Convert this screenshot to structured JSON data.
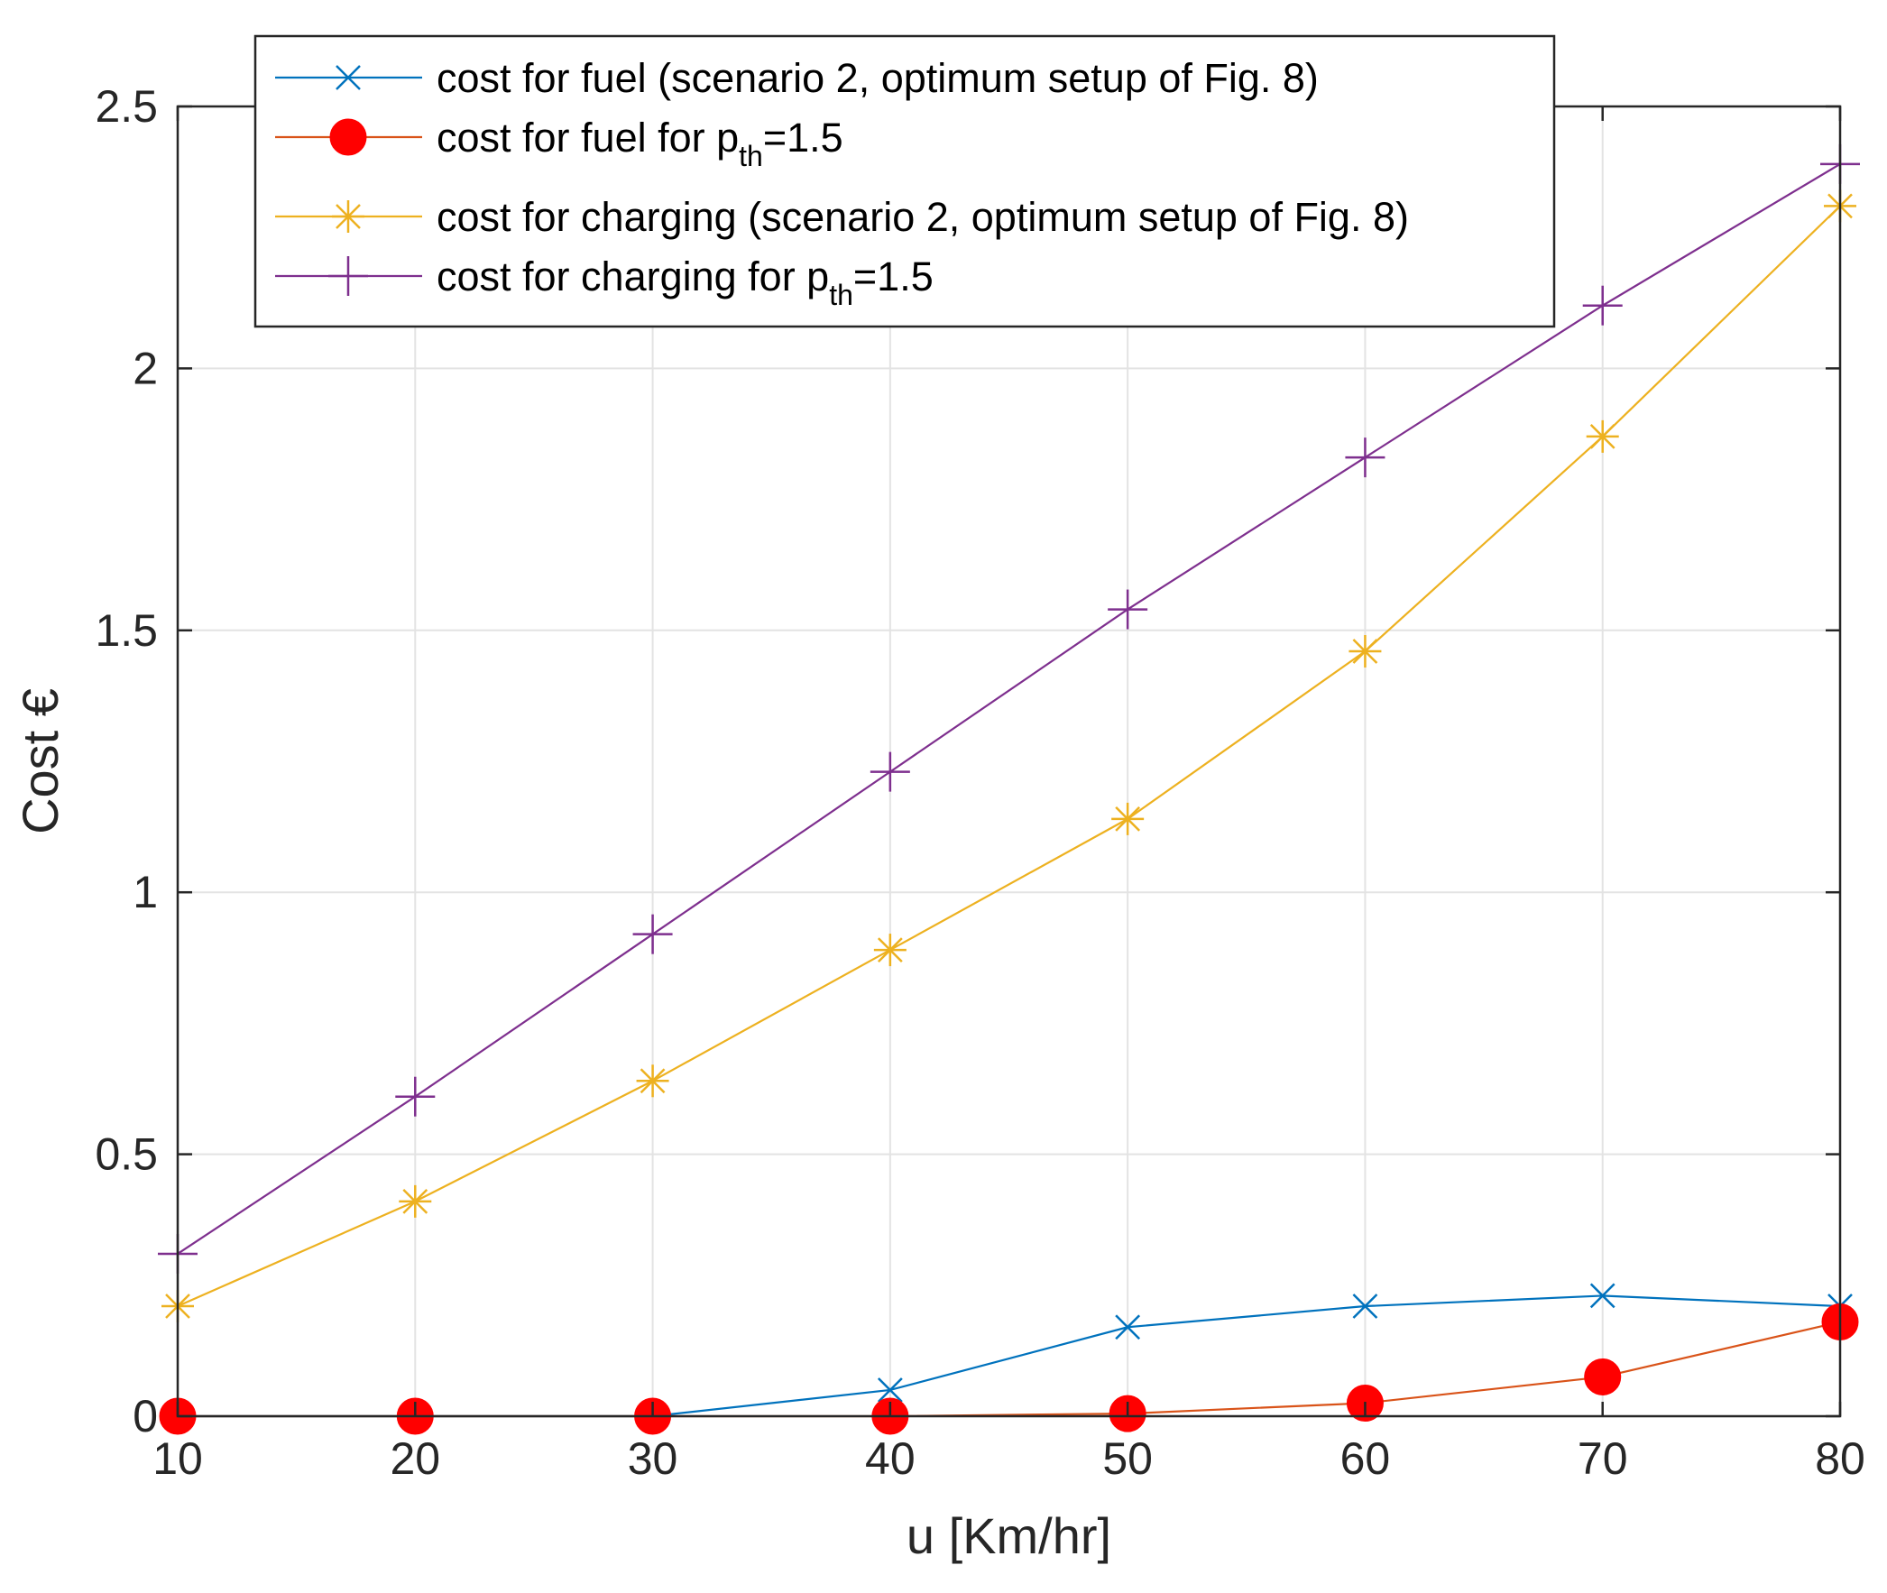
{
  "chart_data": {
    "type": "line",
    "title": "",
    "xlabel": "u [Km/hr]",
    "ylabel": "Cost €",
    "x": [
      10,
      20,
      30,
      40,
      50,
      60,
      70,
      80
    ],
    "xlim": [
      10,
      80
    ],
    "ylim": [
      0,
      2.5
    ],
    "xticks": [
      "10",
      "20",
      "30",
      "40",
      "50",
      "60",
      "70",
      "80"
    ],
    "yticks": [
      "0",
      "0.5",
      "1",
      "1.5",
      "2",
      "2.5"
    ],
    "grid": true,
    "legend_position": "top",
    "series": [
      {
        "name": "cost for fuel (scenario 2, optimum setup of Fig. 8)",
        "legend_text": "cost for fuel (scenario 2, optimum setup of Fig. 8)",
        "color": "#0072BD",
        "marker": "x",
        "values": [
          0,
          0,
          0,
          0.05,
          0.17,
          0.21,
          0.23,
          0.21
        ]
      },
      {
        "name": "cost for fuel for p_th=1.5",
        "legend_text": "cost for fuel for p",
        "legend_sub": "th",
        "legend_suffix": "=1.5",
        "color": "#D95319",
        "marker_color": "#FF0000",
        "marker": "o",
        "values": [
          0,
          0,
          0,
          0,
          0.005,
          0.025,
          0.075,
          0.18
        ]
      },
      {
        "name": "cost for charging (scenario 2, optimum setup of Fig. 8)",
        "legend_text": "cost for charging (scenario 2, optimum setup of Fig. 8)",
        "color": "#EDB120",
        "marker": "*",
        "values": [
          0.21,
          0.41,
          0.64,
          0.89,
          1.14,
          1.46,
          1.87,
          2.31
        ]
      },
      {
        "name": "cost for charging for p_th=1.5",
        "legend_text": "cost for charging for p",
        "legend_sub": "th",
        "legend_suffix": "=1.5",
        "color": "#7E2F8E",
        "marker": "+",
        "values": [
          0.31,
          0.61,
          0.92,
          1.23,
          1.54,
          1.83,
          2.12,
          2.39
        ]
      }
    ]
  }
}
